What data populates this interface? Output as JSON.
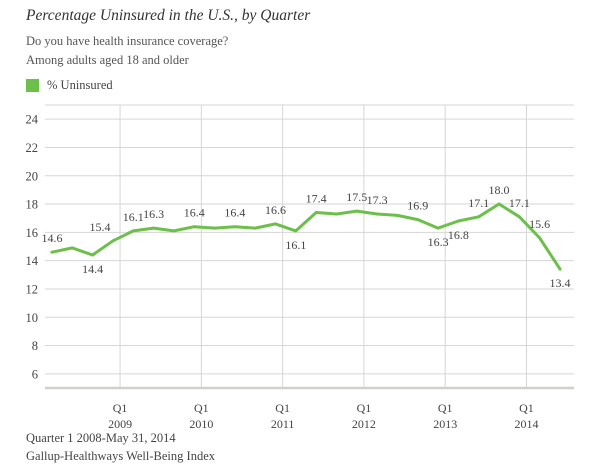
{
  "chart_data": {
    "type": "line",
    "title": "Percentage Uninsured in the U.S., by Quarter",
    "subtitles": [
      "Do you have health insurance coverage?",
      "Among adults aged 18 and older"
    ],
    "xlabel": "",
    "ylabel": "",
    "ylim": [
      5,
      25
    ],
    "yticks": [
      6,
      8,
      10,
      12,
      14,
      16,
      18,
      20,
      22,
      24
    ],
    "grid": true,
    "legend_position": "top-left",
    "x": [
      "Q1 2008",
      "Q2 2008",
      "Q3 2008",
      "Q4 2008",
      "Q1 2009",
      "Q2 2009",
      "Q3 2009",
      "Q4 2009",
      "Q1 2010",
      "Q2 2010",
      "Q3 2010",
      "Q4 2010",
      "Q1 2011",
      "Q2 2011",
      "Q3 2011",
      "Q4 2011",
      "Q1 2012",
      "Q2 2012",
      "Q3 2012",
      "Q4 2012",
      "Q1 2013",
      "Q2 2013",
      "Q3 2013",
      "Q4 2013",
      "Q1 2014",
      "Q2 2014"
    ],
    "xtick_labels": [
      {
        "quarter": "Q1",
        "year": "2009"
      },
      {
        "quarter": "Q1",
        "year": "2010"
      },
      {
        "quarter": "Q1",
        "year": "2011"
      },
      {
        "quarter": "Q1",
        "year": "2012"
      },
      {
        "quarter": "Q1",
        "year": "2013"
      },
      {
        "quarter": "Q1",
        "year": "2014"
      }
    ],
    "series": [
      {
        "name": "% Uninsured",
        "color": "#6cc04a",
        "values": [
          14.6,
          14.9,
          14.4,
          15.4,
          16.1,
          16.3,
          16.1,
          16.4,
          16.3,
          16.4,
          16.3,
          16.6,
          16.1,
          17.4,
          17.3,
          17.5,
          17.3,
          17.2,
          16.9,
          16.3,
          16.8,
          17.1,
          18.0,
          17.1,
          15.6,
          13.4
        ],
        "data_labels": [
          {
            "index": 0,
            "text": "14.6",
            "pos": "above"
          },
          {
            "index": 2,
            "text": "14.4",
            "pos": "below"
          },
          {
            "index": 3,
            "text": "15.4",
            "pos": "above-left"
          },
          {
            "index": 4,
            "text": "16.1",
            "pos": "above"
          },
          {
            "index": 5,
            "text": "16.3",
            "pos": "above"
          },
          {
            "index": 7,
            "text": "16.4",
            "pos": "above"
          },
          {
            "index": 9,
            "text": "16.4",
            "pos": "above"
          },
          {
            "index": 11,
            "text": "16.6",
            "pos": "above"
          },
          {
            "index": 12,
            "text": "16.1",
            "pos": "below"
          },
          {
            "index": 13,
            "text": "17.4",
            "pos": "above"
          },
          {
            "index": 15,
            "text": "17.5",
            "pos": "above"
          },
          {
            "index": 16,
            "text": "17.3",
            "pos": "above"
          },
          {
            "index": 18,
            "text": "16.9",
            "pos": "above"
          },
          {
            "index": 19,
            "text": "16.3",
            "pos": "below"
          },
          {
            "index": 20,
            "text": "16.8",
            "pos": "below"
          },
          {
            "index": 21,
            "text": "17.1",
            "pos": "above"
          },
          {
            "index": 22,
            "text": "18.0",
            "pos": "above"
          },
          {
            "index": 23,
            "text": "17.1",
            "pos": "above"
          },
          {
            "index": 24,
            "text": "15.6",
            "pos": "above"
          },
          {
            "index": 25,
            "text": "13.4",
            "pos": "below"
          }
        ]
      }
    ],
    "footer": [
      "Quarter 1 2008-May 31, 2014",
      "Gallup-Healthways Well-Being Index"
    ]
  },
  "colors": {
    "line": "#6cc04a",
    "grid": "#d6d6d6",
    "axis": "#d0d0cc",
    "text": "#333333"
  }
}
